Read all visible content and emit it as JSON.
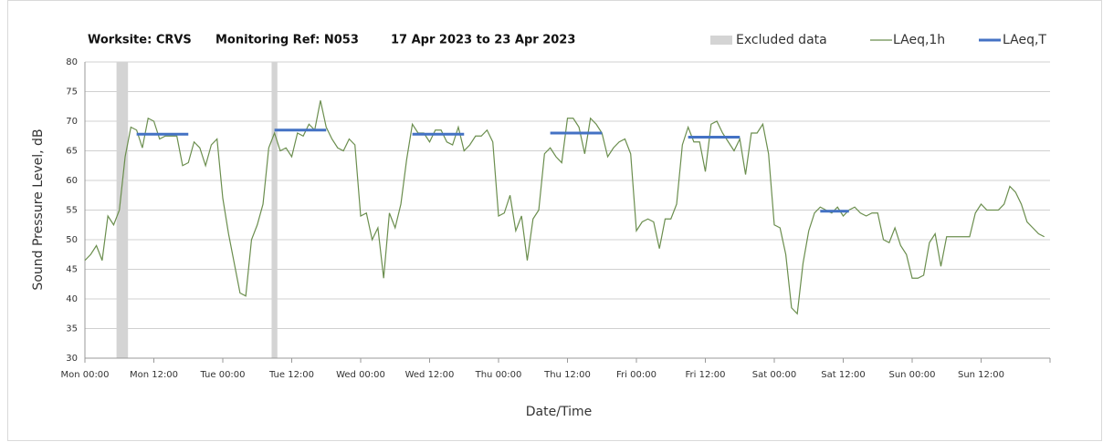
{
  "chart_data": {
    "type": "line",
    "title_parts": [
      "Worksite: CRVS",
      "Monitoring Ref: N053",
      "17 Apr 2023 to 23 Apr 2023"
    ],
    "xlabel": "Date/Time",
    "ylabel": "Sound Pressure Level, dB",
    "xlim": [
      0,
      168
    ],
    "ylim": [
      30,
      80
    ],
    "yticks": [
      30,
      35,
      40,
      45,
      50,
      55,
      60,
      65,
      70,
      75,
      80
    ],
    "xticks": [
      {
        "value": 0,
        "label": "Mon 00:00"
      },
      {
        "value": 12,
        "label": "Mon 12:00"
      },
      {
        "value": 24,
        "label": "Tue 00:00"
      },
      {
        "value": 36,
        "label": "Tue 12:00"
      },
      {
        "value": 48,
        "label": "Wed 00:00"
      },
      {
        "value": 60,
        "label": "Wed 12:00"
      },
      {
        "value": 72,
        "label": "Thu 00:00"
      },
      {
        "value": 84,
        "label": "Thu 12:00"
      },
      {
        "value": 96,
        "label": "Fri 00:00"
      },
      {
        "value": 108,
        "label": "Fri 12:00"
      },
      {
        "value": 120,
        "label": "Sat 00:00"
      },
      {
        "value": 132,
        "label": "Sat 12:00"
      },
      {
        "value": 144,
        "label": "Sun 00:00"
      },
      {
        "value": 156,
        "label": "Sun 12:00"
      },
      {
        "value": 168,
        "label": ""
      }
    ],
    "grid": true,
    "excluded": {
      "name": "Excluded data",
      "color": "#d4d4d4",
      "ranges": [
        [
          5.5,
          7.5
        ],
        [
          32.5,
          33.5
        ]
      ]
    },
    "periods": {
      "name": "LAeq,T",
      "color": "#4472c4",
      "segments": [
        {
          "x": [
            9,
            18
          ],
          "value": 67.8
        },
        {
          "x": [
            33,
            42
          ],
          "value": 68.5
        },
        {
          "x": [
            57,
            66
          ],
          "value": 67.8
        },
        {
          "x": [
            81,
            90
          ],
          "value": 68
        },
        {
          "x": [
            105,
            114
          ],
          "value": 67.3
        },
        {
          "x": [
            128,
            133
          ],
          "value": 54.8
        }
      ]
    },
    "x": [
      0,
      1,
      2,
      3,
      4,
      5,
      6,
      7,
      8,
      9,
      10,
      11,
      12,
      13,
      14,
      15,
      16,
      17,
      18,
      19,
      20,
      21,
      22,
      23,
      24,
      25,
      26,
      27,
      28,
      29,
      30,
      31,
      32,
      33,
      34,
      35,
      36,
      37,
      38,
      39,
      40,
      41,
      42,
      43,
      44,
      45,
      46,
      47,
      48,
      49,
      50,
      51,
      52,
      53,
      54,
      55,
      56,
      57,
      58,
      59,
      60,
      61,
      62,
      63,
      64,
      65,
      66,
      67,
      68,
      69,
      70,
      71,
      72,
      73,
      74,
      75,
      76,
      77,
      78,
      79,
      80,
      81,
      82,
      83,
      84,
      85,
      86,
      87,
      88,
      89,
      90,
      91,
      92,
      93,
      94,
      95,
      96,
      97,
      98,
      99,
      100,
      101,
      102,
      103,
      104,
      105,
      106,
      107,
      108,
      109,
      110,
      111,
      112,
      113,
      114,
      115,
      116,
      117,
      118,
      119,
      120,
      121,
      122,
      123,
      124,
      125,
      126,
      127,
      128,
      129,
      130,
      131,
      132,
      133,
      134,
      135,
      136,
      137,
      138,
      139,
      140,
      141,
      142,
      143,
      144,
      145,
      146,
      147,
      148,
      149,
      150,
      151,
      152,
      153,
      154,
      155,
      156,
      157,
      158,
      159,
      160,
      161,
      162,
      163,
      164,
      165,
      166,
      167
    ],
    "series": [
      {
        "name": "LAeq,1h",
        "color": "#6b8e4e",
        "values": [
          46.5,
          47.5,
          49,
          46.5,
          54,
          52.5,
          55,
          64,
          69,
          68.5,
          65.5,
          70.5,
          70,
          67,
          67.5,
          67.5,
          67.5,
          62.5,
          63,
          66.5,
          65.5,
          62.5,
          66,
          67,
          57,
          51,
          46,
          41,
          40.5,
          50,
          52.5,
          56,
          65.5,
          68,
          65,
          65.5,
          64,
          68,
          67.5,
          69.5,
          68.5,
          73.5,
          69,
          67,
          65.5,
          65,
          67,
          66,
          54,
          54.5,
          50,
          52,
          43.5,
          54.5,
          52,
          56,
          63.5,
          69.5,
          68,
          68,
          66.5,
          68.5,
          68.5,
          66.5,
          66,
          69,
          65,
          66,
          67.5,
          67.5,
          68.5,
          66.5,
          54,
          54.5,
          57.5,
          51.5,
          54,
          46.5,
          53.5,
          55,
          64.5,
          65.5,
          64,
          63,
          70.5,
          70.5,
          69,
          64.5,
          70.5,
          69.5,
          68,
          64,
          65.5,
          66.5,
          67,
          64.5,
          51.5,
          53,
          53.5,
          53,
          48.5,
          53.5,
          53.5,
          56,
          66,
          69,
          66.5,
          66.5,
          61.5,
          69.5,
          70,
          68,
          66.5,
          65,
          67,
          61,
          68,
          68,
          69.5,
          64.5,
          52.5,
          52,
          47.5,
          38.5,
          37.5,
          46,
          51.5,
          54.5,
          55.5,
          55,
          54.5,
          55.5,
          54,
          55,
          55.5,
          54.5,
          54,
          54.5,
          54.5,
          50,
          49.5,
          52,
          49,
          47.5,
          43.5,
          43.5,
          44,
          49.5,
          51,
          45.5,
          50.5,
          50.5,
          50.5,
          50.5,
          50.5,
          54.5,
          56,
          55,
          55,
          55,
          56,
          59,
          58,
          56,
          53,
          52,
          51,
          50.5
        ]
      }
    ]
  }
}
